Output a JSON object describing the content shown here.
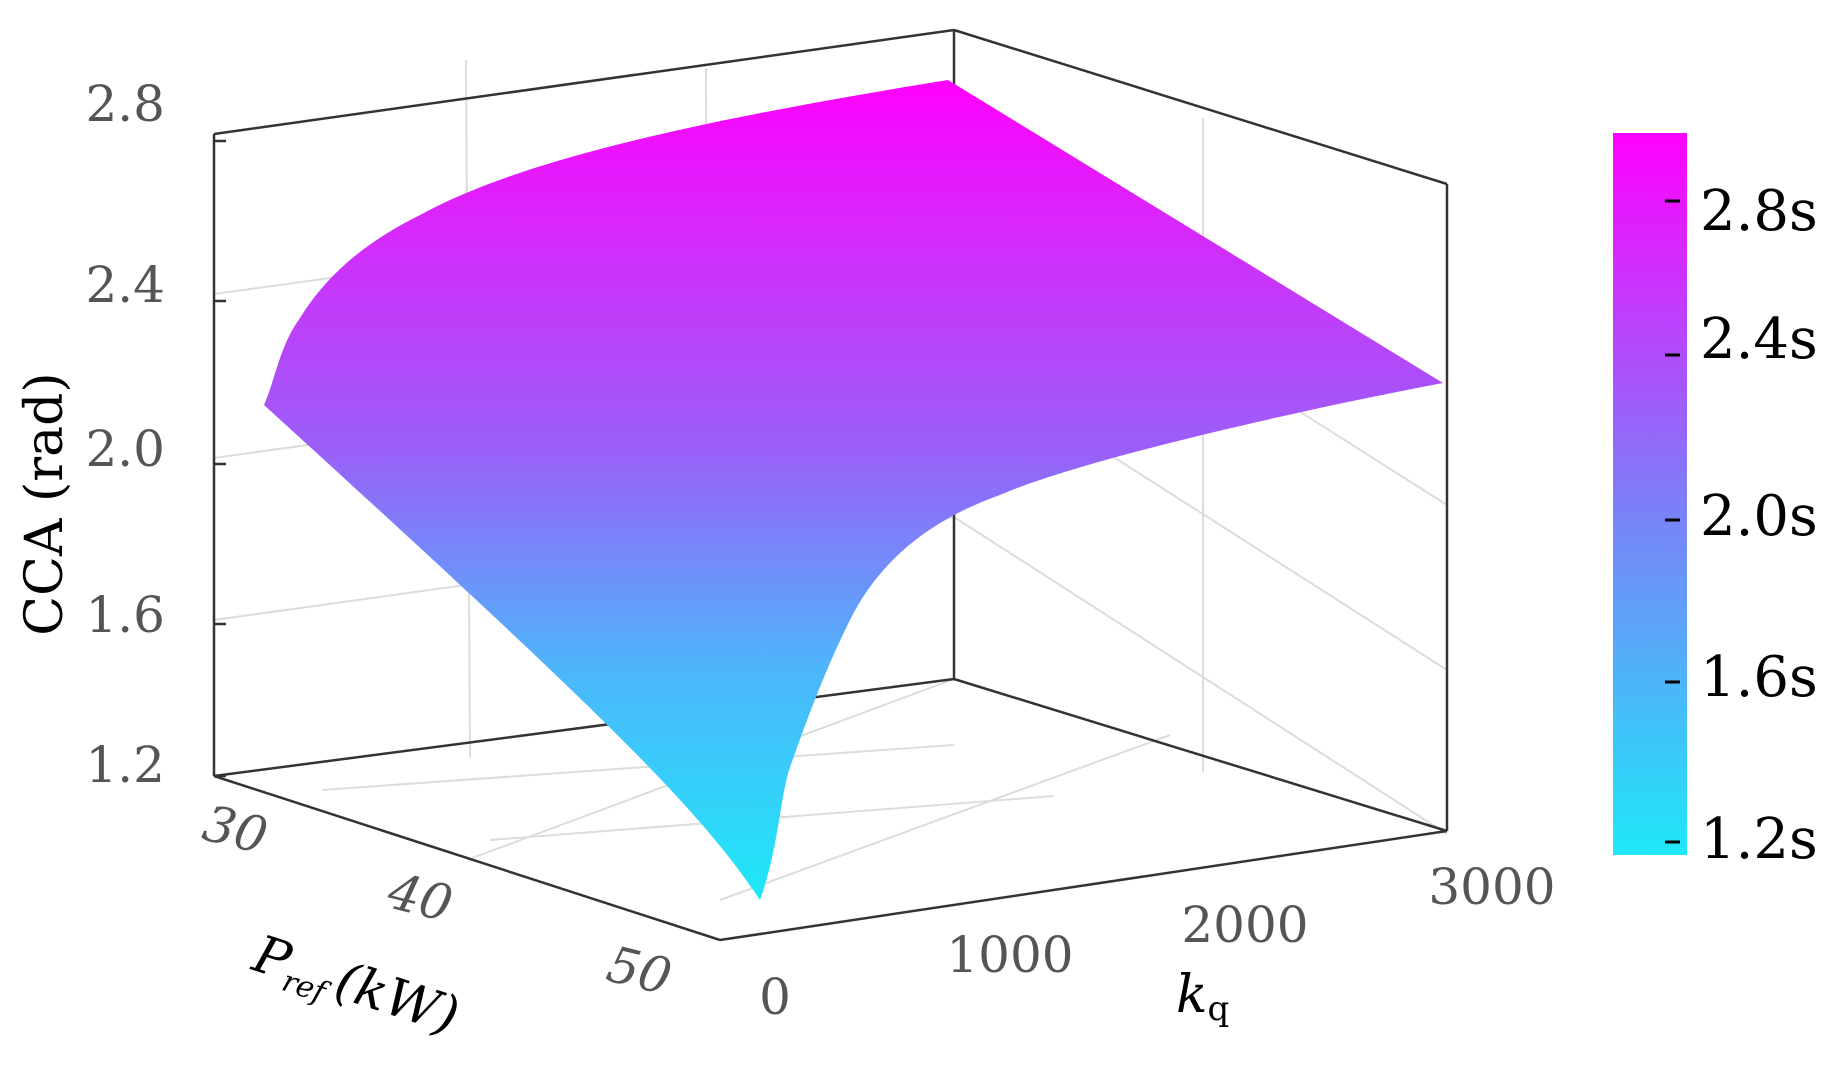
{
  "chart_data": {
    "type": "surface",
    "zlabel": "CCA (rad)",
    "xlabel_main": "P",
    "xlabel_sub": "ref",
    "xlabel_unit": "(kW)",
    "ylabel_main": "k",
    "ylabel_sub": "q",
    "x_ticks": [
      "30",
      "40",
      "50"
    ],
    "y_ticks": [
      "0",
      "1000",
      "2000",
      "3000"
    ],
    "z_ticks": [
      "1.2",
      "1.6",
      "2.0",
      "2.4",
      "2.8"
    ],
    "xlim": [
      30,
      50
    ],
    "ylim": [
      0,
      3000
    ],
    "zlim": [
      1.2,
      2.8
    ],
    "corners": [
      {
        "x": 30,
        "y": 0,
        "z": 2.1
      },
      {
        "x": 30,
        "y": 3000,
        "z": 2.84
      },
      {
        "x": 50,
        "y": 3000,
        "z": 2.1
      },
      {
        "x": 50,
        "y": 0,
        "z": 1.13
      }
    ],
    "colorbar": {
      "ticks": [
        "1.2s",
        "1.6s",
        "2.0s",
        "2.4s",
        "2.8s"
      ],
      "range": [
        1.13,
        2.93
      ],
      "colors": [
        "#1ee8f8",
        "#7f7cf8",
        "#ff00ff"
      ]
    }
  }
}
